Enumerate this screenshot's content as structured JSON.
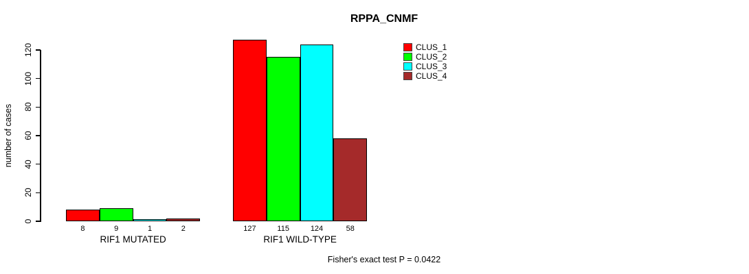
{
  "chart_data": {
    "type": "bar",
    "title": "RPPA_CNMF",
    "xlabel": "",
    "ylabel": "number of cases",
    "ylim": [
      0,
      120
    ],
    "yticks": [
      0,
      20,
      40,
      60,
      80,
      100,
      120
    ],
    "grid": false,
    "legend_position": "top-right",
    "categories": [
      "RIF1 MUTATED",
      "RIF1 WILD-TYPE"
    ],
    "series": [
      {
        "name": "CLUS_1",
        "color": "#FF0000",
        "values": [
          8,
          127
        ]
      },
      {
        "name": "CLUS_2",
        "color": "#00FF00",
        "values": [
          9,
          115
        ]
      },
      {
        "name": "CLUS_3",
        "color": "#00FFFF",
        "values": [
          1,
          124
        ]
      },
      {
        "name": "CLUS_4",
        "color": "#A52A2A",
        "values": [
          2,
          58
        ]
      }
    ],
    "bar_value_labels": [
      [
        8,
        9,
        1,
        2
      ],
      [
        127,
        115,
        124,
        58
      ]
    ],
    "annotation": "Fisher's exact test P = 0.0422"
  }
}
